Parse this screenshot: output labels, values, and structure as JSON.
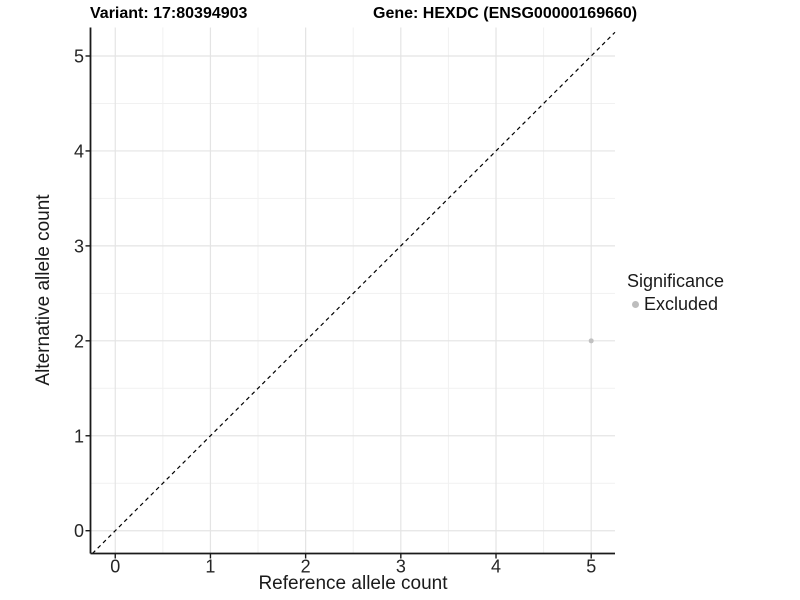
{
  "header": {
    "title_variant": "Variant: 17:80394903",
    "title_gene": "Gene: HEXDC (ENSG00000169660)"
  },
  "chart_data": {
    "type": "scatter",
    "title_left": "Variant: 17:80394903",
    "title_right": "Gene: HEXDC (ENSG00000169660)",
    "xlabel": "Reference allele count",
    "ylabel": "Alternative allele count",
    "xlim": [
      -0.26,
      5.25
    ],
    "ylim": [
      -0.24,
      5.3
    ],
    "xticks": [
      0,
      1,
      2,
      3,
      4,
      5
    ],
    "yticks": [
      0,
      1,
      2,
      3,
      4,
      5
    ],
    "grid": {
      "major": true,
      "minor": true
    },
    "series": [
      {
        "name": "Excluded",
        "color": "#c1c1c1",
        "points": [
          {
            "x": 5,
            "y": 2
          }
        ]
      }
    ],
    "reference_line": {
      "type": "identity",
      "style": "dashed",
      "color": "#000000"
    },
    "legend": {
      "title": "Significance",
      "position": "right",
      "items": [
        {
          "label": "Excluded",
          "color": "#bdbdbd"
        }
      ]
    }
  },
  "colors": {
    "background": "#ffffff",
    "grid_major": "#e4e4e4",
    "grid_minor": "#f1f1f1",
    "axis_line": "#1a1a1a",
    "tick_text": "#262626",
    "title_text": "#000000"
  }
}
